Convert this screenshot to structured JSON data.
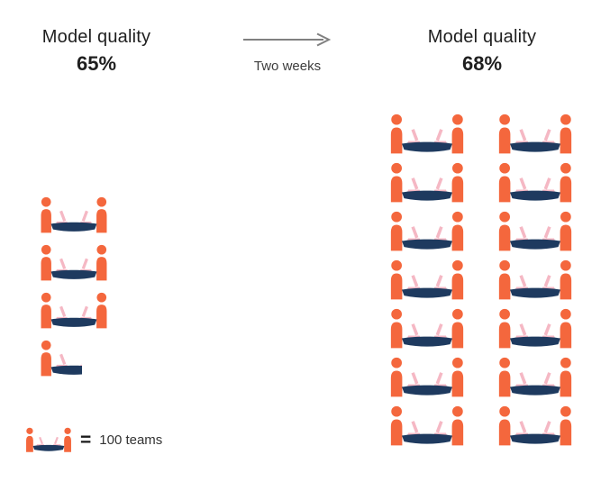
{
  "panels": {
    "left": {
      "title": "Model quality",
      "value": "65%"
    },
    "right": {
      "title": "Model quality",
      "value": "68%"
    }
  },
  "transition": {
    "label": "Two weeks"
  },
  "legend": {
    "equals": "=",
    "label": "100 teams"
  },
  "colors": {
    "person": "#F4673D",
    "table": "#1E3A5F",
    "laptop": "#F5B8C4",
    "arrow": "#808080",
    "text": "#1F1F1F"
  },
  "chart_data": {
    "type": "pictogram",
    "icon": "team-at-desk",
    "icon_value": 100,
    "unit": "teams",
    "legend": "1 team icon = 100 teams",
    "transition_label": "Two weeks",
    "groups": [
      {
        "label": "Model quality",
        "value_label": "65%",
        "quality_pct": 65,
        "icon_count": 3.5,
        "teams": 350,
        "columns": 1
      },
      {
        "label": "Model quality",
        "value_label": "68%",
        "quality_pct": 68,
        "icon_count": 14,
        "teams": 1400,
        "columns": 2
      }
    ]
  }
}
